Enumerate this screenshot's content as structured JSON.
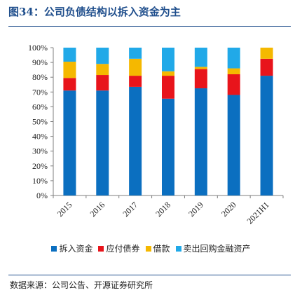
{
  "header": {
    "title": "图34：公司负债结构以拆入资金为主"
  },
  "source": "数据来源：公司公告、开源证券研究所",
  "chart_data": {
    "type": "bar",
    "stacked": true,
    "categories": [
      "2015",
      "2016",
      "2017",
      "2018",
      "2019",
      "2020",
      "2021H1"
    ],
    "series": [
      {
        "name": "拆入资金",
        "color": "#0b6fc0",
        "values": [
          71,
          71,
          73.5,
          65.5,
          72.5,
          68,
          81
        ]
      },
      {
        "name": "应付债券",
        "color": "#e8141b",
        "values": [
          8.5,
          10.5,
          7.5,
          15.5,
          13,
          14,
          11.5
        ]
      },
      {
        "name": "借款",
        "color": "#f5b800",
        "values": [
          11,
          7.5,
          11.5,
          3,
          1.5,
          4,
          7.5
        ]
      },
      {
        "name": "卖出回购金融资产",
        "color": "#21a9e8",
        "values": [
          9.5,
          11,
          7.5,
          16,
          13,
          14,
          0
        ]
      }
    ],
    "ylim": [
      0,
      100
    ],
    "yticks": [
      "0%",
      "10%",
      "20%",
      "30%",
      "40%",
      "50%",
      "60%",
      "70%",
      "80%",
      "90%",
      "100%"
    ],
    "legend_position": "bottom",
    "grid": false
  }
}
